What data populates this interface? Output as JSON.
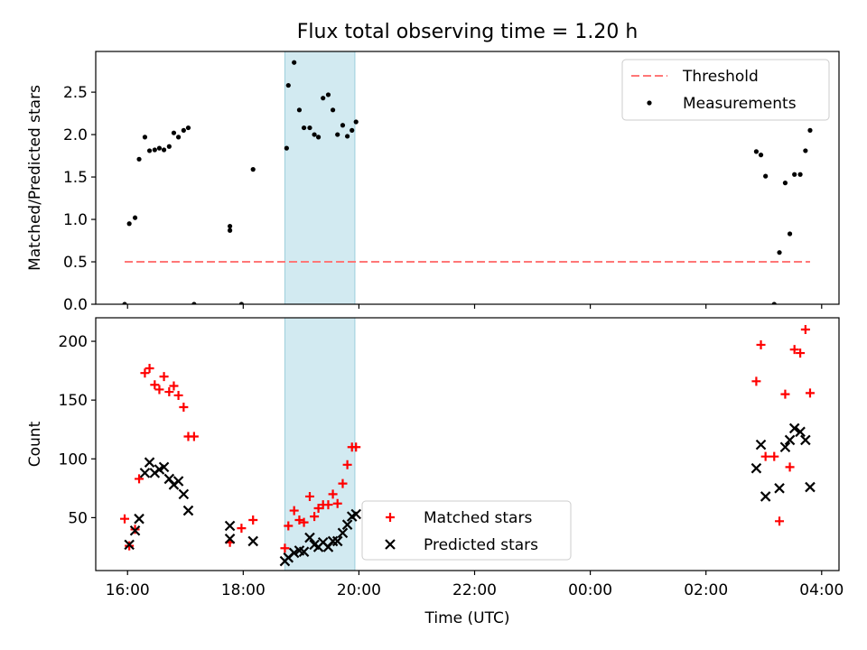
{
  "title": "Flux total observing time = 1.20 h",
  "chart_data": [
    {
      "type": "scatter",
      "panel": "top",
      "ylabel": "Matched/Predicted stars",
      "xlim": [
        15.45,
        28.3
      ],
      "ylim": [
        0,
        2.98
      ],
      "yticks": [
        0.0,
        0.5,
        1.0,
        1.5,
        2.0,
        2.5
      ],
      "ytick_labels": [
        "0.0",
        "0.5",
        "1.0",
        "1.5",
        "2.0",
        "2.5"
      ],
      "shaded_span": [
        18.72,
        19.93
      ],
      "legend": "top-right",
      "threshold": {
        "name": "Threshold",
        "value": 0.5,
        "x": [
          15.95,
          27.8
        ],
        "color": "#ff7777"
      },
      "series": [
        {
          "name": "Measurements",
          "color": "#000000",
          "points": [
            [
              15.95,
              0.0
            ],
            [
              16.03,
              0.95
            ],
            [
              16.13,
              1.02
            ],
            [
              16.2,
              1.71
            ],
            [
              16.3,
              1.97
            ],
            [
              16.38,
              1.81
            ],
            [
              16.47,
              1.82
            ],
            [
              16.55,
              1.84
            ],
            [
              16.63,
              1.82
            ],
            [
              16.72,
              1.86
            ],
            [
              16.8,
              2.02
            ],
            [
              16.88,
              1.97
            ],
            [
              16.97,
              2.05
            ],
            [
              17.05,
              2.08
            ],
            [
              17.15,
              0.0
            ],
            [
              17.77,
              0.92
            ],
            [
              17.77,
              0.87
            ],
            [
              17.97,
              0.0
            ],
            [
              18.17,
              1.59
            ],
            [
              18.75,
              1.84
            ],
            [
              18.78,
              2.58
            ],
            [
              18.88,
              2.85
            ],
            [
              18.97,
              2.29
            ],
            [
              19.05,
              2.08
            ],
            [
              19.15,
              2.08
            ],
            [
              19.23,
              2.0
            ],
            [
              19.3,
              1.97
            ],
            [
              19.38,
              2.43
            ],
            [
              19.47,
              2.47
            ],
            [
              19.55,
              2.29
            ],
            [
              19.63,
              2.0
            ],
            [
              19.72,
              2.11
            ],
            [
              19.8,
              1.98
            ],
            [
              19.88,
              2.05
            ],
            [
              19.95,
              2.15
            ],
            [
              26.87,
              1.8
            ],
            [
              26.95,
              1.76
            ],
            [
              27.03,
              1.51
            ],
            [
              27.18,
              0.0
            ],
            [
              27.27,
              0.61
            ],
            [
              27.37,
              1.43
            ],
            [
              27.45,
              0.83
            ],
            [
              27.53,
              1.53
            ],
            [
              27.63,
              1.53
            ],
            [
              27.72,
              1.81
            ],
            [
              27.8,
              2.05
            ]
          ]
        }
      ]
    },
    {
      "type": "scatter",
      "panel": "bottom",
      "xlabel": "Time (UTC)",
      "ylabel": "Count",
      "xlim": [
        15.45,
        28.3
      ],
      "ylim": [
        5,
        220
      ],
      "xticks": [
        16,
        18,
        20,
        22,
        24,
        26,
        28
      ],
      "xtick_labels": [
        "16:00",
        "18:00",
        "20:00",
        "22:00",
        "00:00",
        "02:00",
        "04:00"
      ],
      "yticks": [
        50,
        100,
        150,
        200
      ],
      "ytick_labels": [
        "50",
        "100",
        "150",
        "200"
      ],
      "shaded_span": [
        18.72,
        19.93
      ],
      "legend": "lower-center",
      "series": [
        {
          "name": "Matched stars",
          "marker": "plus",
          "color": "#ff0000",
          "points": [
            [
              15.95,
              49
            ],
            [
              16.03,
              26
            ],
            [
              16.13,
              40
            ],
            [
              16.2,
              83
            ],
            [
              16.3,
              173
            ],
            [
              16.38,
              177
            ],
            [
              16.47,
              163
            ],
            [
              16.55,
              159
            ],
            [
              16.63,
              170
            ],
            [
              16.72,
              157
            ],
            [
              16.8,
              162
            ],
            [
              16.88,
              154
            ],
            [
              16.97,
              144
            ],
            [
              17.05,
              119
            ],
            [
              17.15,
              119
            ],
            [
              17.77,
              29
            ],
            [
              17.97,
              41
            ],
            [
              18.17,
              48
            ],
            [
              18.72,
              24
            ],
            [
              18.78,
              43
            ],
            [
              18.88,
              56
            ],
            [
              18.97,
              48
            ],
            [
              19.05,
              46
            ],
            [
              19.15,
              68
            ],
            [
              19.23,
              51
            ],
            [
              19.3,
              58
            ],
            [
              19.38,
              61
            ],
            [
              19.47,
              61
            ],
            [
              19.55,
              70
            ],
            [
              19.63,
              62
            ],
            [
              19.72,
              79
            ],
            [
              19.8,
              95
            ],
            [
              19.88,
              110
            ],
            [
              19.95,
              110
            ],
            [
              26.87,
              166
            ],
            [
              26.95,
              197
            ],
            [
              27.03,
              102
            ],
            [
              27.18,
              102
            ],
            [
              27.27,
              47
            ],
            [
              27.37,
              155
            ],
            [
              27.45,
              93
            ],
            [
              27.53,
              193
            ],
            [
              27.63,
              190
            ],
            [
              27.72,
              210
            ],
            [
              27.8,
              156
            ]
          ]
        },
        {
          "name": "Predicted stars",
          "marker": "x",
          "color": "#000000",
          "points": [
            [
              16.03,
              27
            ],
            [
              16.13,
              39
            ],
            [
              16.2,
              49
            ],
            [
              16.3,
              88
            ],
            [
              16.38,
              97
            ],
            [
              16.47,
              88
            ],
            [
              16.55,
              91
            ],
            [
              16.63,
              93
            ],
            [
              16.72,
              83
            ],
            [
              16.8,
              78
            ],
            [
              16.88,
              81
            ],
            [
              16.97,
              70
            ],
            [
              17.05,
              56
            ],
            [
              17.77,
              43
            ],
            [
              17.77,
              32
            ],
            [
              18.17,
              30
            ],
            [
              18.72,
              13
            ],
            [
              18.78,
              16
            ],
            [
              18.88,
              20
            ],
            [
              18.97,
              22
            ],
            [
              19.05,
              21
            ],
            [
              19.15,
              33
            ],
            [
              19.23,
              27
            ],
            [
              19.3,
              25
            ],
            [
              19.38,
              29
            ],
            [
              19.47,
              25
            ],
            [
              19.55,
              30
            ],
            [
              19.63,
              30
            ],
            [
              19.72,
              37
            ],
            [
              19.8,
              44
            ],
            [
              19.88,
              51
            ],
            [
              19.95,
              53
            ],
            [
              26.87,
              92
            ],
            [
              26.95,
              112
            ],
            [
              27.03,
              68
            ],
            [
              27.27,
              75
            ],
            [
              27.37,
              110
            ],
            [
              27.45,
              116
            ],
            [
              27.53,
              126
            ],
            [
              27.63,
              123
            ],
            [
              27.72,
              116
            ],
            [
              27.8,
              76
            ]
          ]
        }
      ]
    }
  ]
}
